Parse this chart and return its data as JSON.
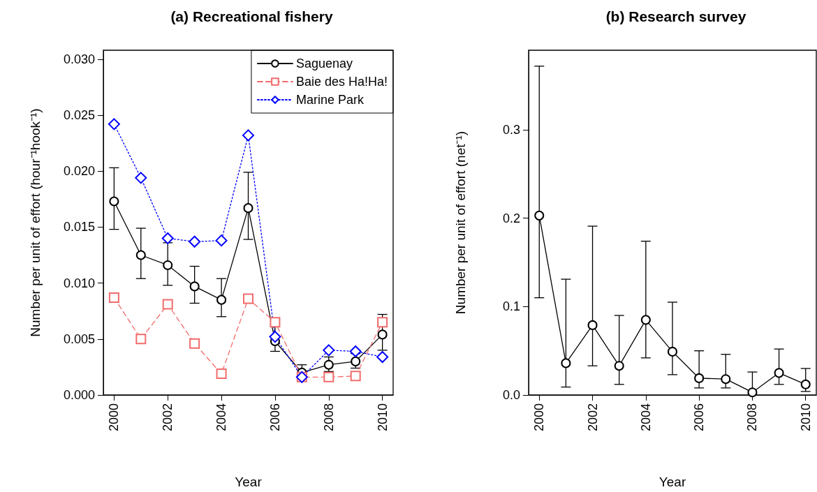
{
  "chart_data": [
    {
      "type": "line",
      "title": "(a) Recreational fishery",
      "xlabel": "Year",
      "ylabel": "Number per unit of effort (hour⁻¹hook⁻¹)",
      "x": [
        2000,
        2001,
        2002,
        2003,
        2004,
        2005,
        2006,
        2007,
        2008,
        2009,
        2010
      ],
      "series": [
        {
          "name": "Saguenay",
          "color": "#000000",
          "marker": "circle",
          "line_style": "solid",
          "values": [
            0.0173,
            0.0125,
            0.0116,
            0.0097,
            0.0085,
            0.0167,
            0.0048,
            0.002,
            0.0027,
            0.003,
            0.0054
          ],
          "errors": [
            [
              0.0148,
              0.0203
            ],
            [
              0.0104,
              0.0149
            ],
            [
              0.0098,
              0.0136
            ],
            [
              0.0082,
              0.0115
            ],
            [
              0.007,
              0.0104
            ],
            [
              0.0139,
              0.0199
            ],
            [
              0.0039,
              0.0063
            ],
            [
              0.0016,
              0.0027
            ],
            [
              0.0021,
              0.0034
            ],
            [
              0.0024,
              0.0037
            ],
            [
              0.004,
              0.0072
            ]
          ]
        },
        {
          "name": "Baie des Ha!Ha!",
          "color": "#f36b6b",
          "marker": "square",
          "line_style": "dashed",
          "values": [
            0.0087,
            0.005,
            0.0081,
            0.0046,
            0.0019,
            0.0086,
            0.0065,
            0.0016,
            0.0016,
            0.0017,
            0.0065
          ]
        },
        {
          "name": "Marine Park",
          "color": "#0000ff",
          "marker": "diamond",
          "line_style": "dotted",
          "values": [
            0.0242,
            0.0194,
            0.014,
            0.0137,
            0.0138,
            0.0232,
            0.0052,
            0.0016,
            0.004,
            0.0039,
            0.0034
          ]
        }
      ],
      "xlim": [
        1999.6,
        2010.4
      ],
      "xticks": [
        2000,
        2002,
        2004,
        2006,
        2008,
        2010
      ],
      "ylim": [
        0,
        0.0308
      ],
      "yticks": [
        {
          "value": 0,
          "label": "0.000"
        },
        {
          "value": 0.005,
          "label": "0.005"
        },
        {
          "value": 0.01,
          "label": "0.010"
        },
        {
          "value": 0.015,
          "label": "0.015"
        },
        {
          "value": 0.02,
          "label": "0.020"
        },
        {
          "value": 0.025,
          "label": "0.025"
        },
        {
          "value": 0.03,
          "label": "0.030"
        }
      ],
      "grid": false,
      "legend": "top right"
    },
    {
      "type": "line",
      "title": "(b) Research survey",
      "xlabel": "Year",
      "ylabel": "Number per unit of effort (net⁻¹)",
      "x": [
        2000,
        2001,
        2002,
        2003,
        2004,
        2005,
        2006,
        2007,
        2008,
        2009,
        2010
      ],
      "series": [
        {
          "color": "#000000",
          "marker": "circle",
          "line_style": "solid",
          "values": [
            0.203,
            0.036,
            0.079,
            0.033,
            0.085,
            0.049,
            0.019,
            0.018,
            0.003,
            0.025,
            0.012
          ],
          "errors": [
            [
              0.11,
              0.372
            ],
            [
              0.009,
              0.131
            ],
            [
              0.033,
              0.191
            ],
            [
              0.012,
              0.09
            ],
            [
              0.042,
              0.174
            ],
            [
              0.023,
              0.105
            ],
            [
              0.008,
              0.05
            ],
            [
              0.008,
              0.046
            ],
            [
              0,
              0.026
            ],
            [
              0.012,
              0.052
            ],
            [
              0.004,
              0.03
            ]
          ]
        }
      ],
      "xlim": [
        1999.6,
        2010.4
      ],
      "xticks": [
        2000,
        2002,
        2004,
        2006,
        2008,
        2010
      ],
      "ylim": [
        0,
        0.39
      ],
      "yticks": [
        {
          "value": 0,
          "label": "0.0"
        },
        {
          "value": 0.1,
          "label": "0.1"
        },
        {
          "value": 0.2,
          "label": "0.2"
        },
        {
          "value": 0.3,
          "label": "0.3"
        }
      ],
      "grid": false,
      "legend": false
    }
  ]
}
